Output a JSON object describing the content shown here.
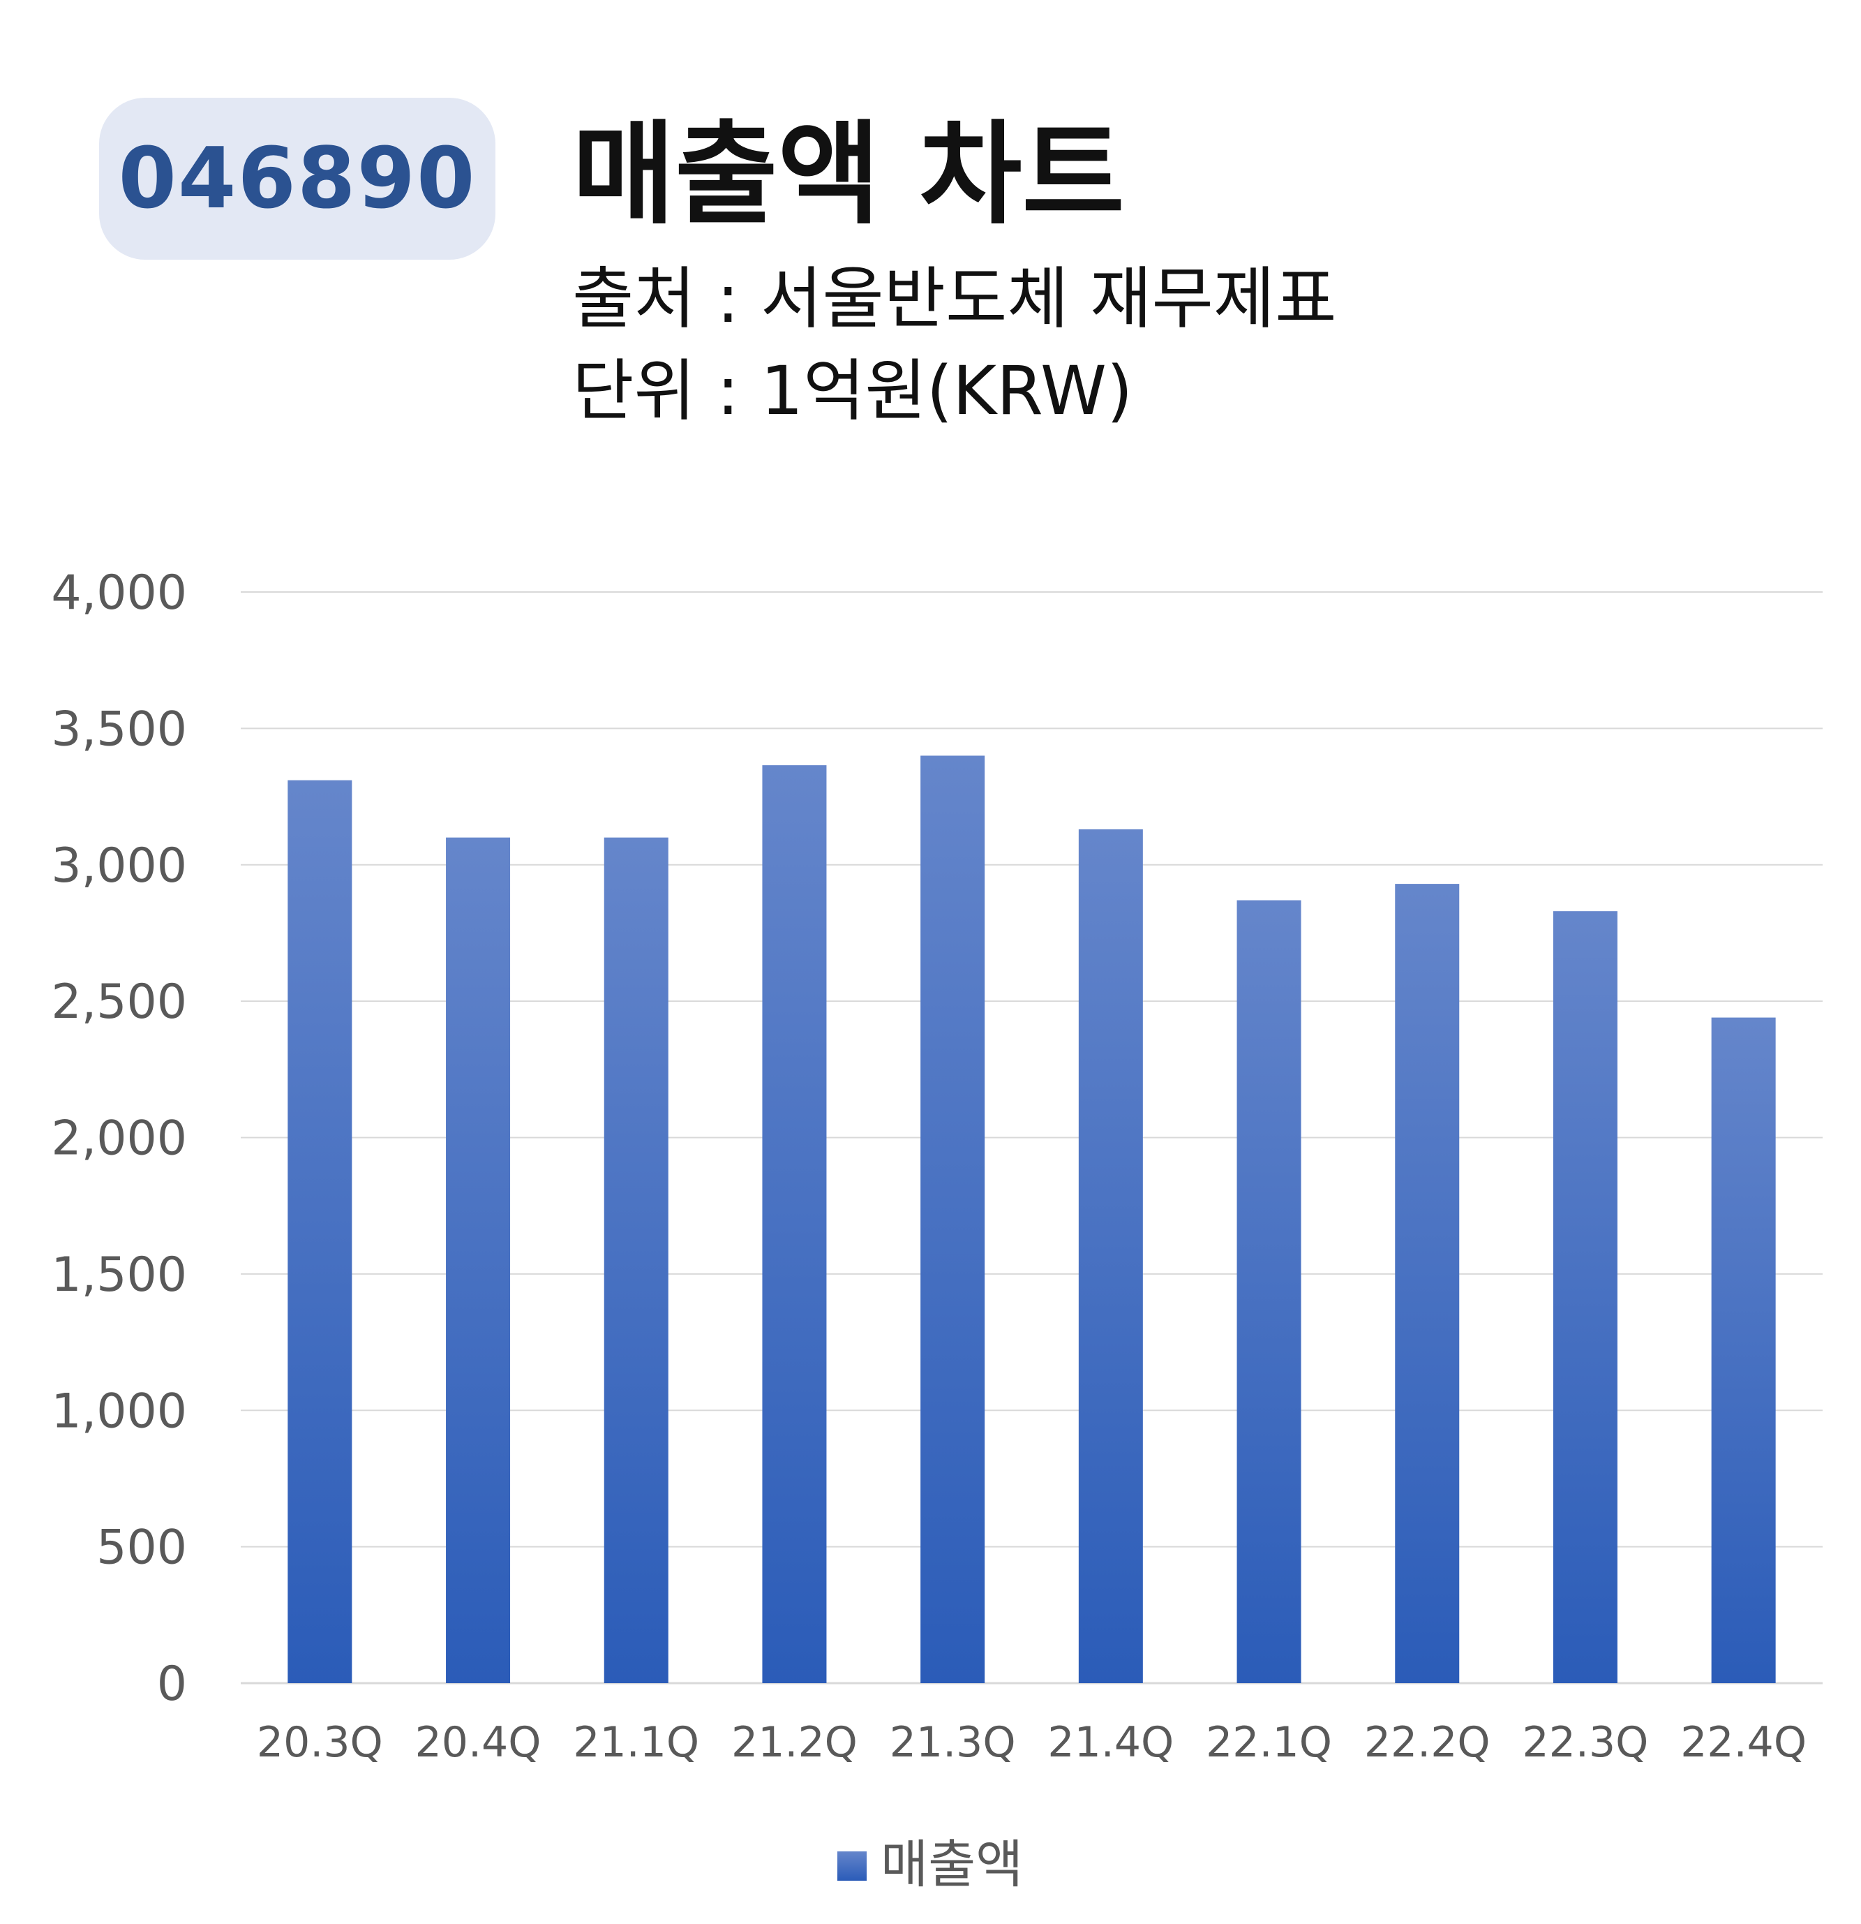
{
  "header": {
    "ticker": "046890",
    "title": "매출액 차트",
    "source": "출처 : 서울반도체 재무제표",
    "unit": "단위 : 1억원(KRW)"
  },
  "colors": {
    "bar_top": "#6586cb",
    "bar_bottom": "#2b5cb8",
    "grid": "#d9d9d9",
    "badge_bg": "#e3e8f4",
    "badge_text": "#2b5291"
  },
  "chart_data": {
    "type": "bar",
    "categories": [
      "20.3Q",
      "20.4Q",
      "21.1Q",
      "21.2Q",
      "21.3Q",
      "21.4Q",
      "22.1Q",
      "22.2Q",
      "22.3Q",
      "22.4Q"
    ],
    "series": [
      {
        "name": "매출액",
        "values": [
          3310,
          3100,
          3100,
          3365,
          3400,
          3130,
          2870,
          2930,
          2830,
          2440
        ]
      }
    ],
    "ylim": [
      0,
      4000
    ],
    "yticks": [
      0,
      500,
      1000,
      1500,
      2000,
      2500,
      3000,
      3500,
      4000
    ],
    "ytick_labels": [
      "0",
      "500",
      "1,000",
      "1,500",
      "2,000",
      "2,500",
      "3,000",
      "3,500",
      "4,000"
    ],
    "grid": true,
    "legend": "bottom"
  }
}
